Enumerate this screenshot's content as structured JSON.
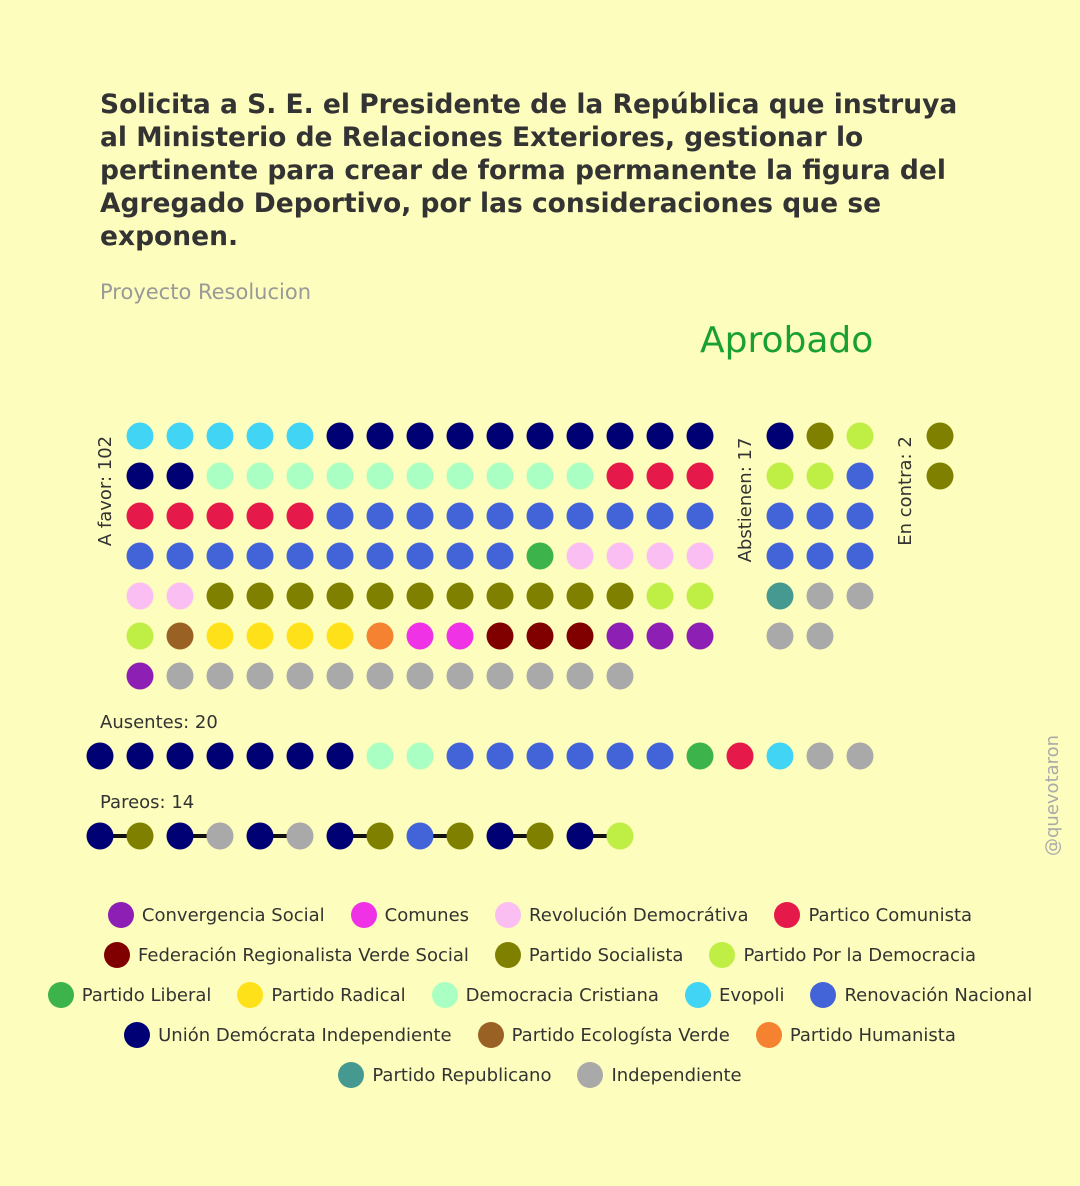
{
  "title": "Solicita a S. E. el Presidente de la República que instruya al Ministerio de Relaciones Exteriores, gestionar lo pertinente para crear de forma permanente la figura del Agregado Deportivo, por las consideraciones que se exponen.",
  "subtitle": "Proyecto Resolucion",
  "result": "Aprobado",
  "watermark": "@quevotaron",
  "parties": [
    {
      "id": "CS",
      "name": "Convergencia Social",
      "color": "#8e1fb5"
    },
    {
      "id": "COM",
      "name": "Comunes",
      "color": "#f032e6"
    },
    {
      "id": "RD",
      "name": "Revolución Democrátiva",
      "color": "#fbbef2"
    },
    {
      "id": "PC",
      "name": "Partico Comunista",
      "color": "#e6194b"
    },
    {
      "id": "FRVS",
      "name": "Federación Regionalista Verde Social",
      "color": "#800000"
    },
    {
      "id": "PS",
      "name": "Partido Socialista",
      "color": "#808000"
    },
    {
      "id": "PPD",
      "name": "Partido Por la Democracia",
      "color": "#bfef45"
    },
    {
      "id": "PL",
      "name": "Partido Liberal",
      "color": "#3cb44b"
    },
    {
      "id": "PR",
      "name": "Partido Radical",
      "color": "#ffe119"
    },
    {
      "id": "DC",
      "name": "Democracia Cristiana",
      "color": "#aaffc3"
    },
    {
      "id": "EVO",
      "name": "Evopoli",
      "color": "#42d4f4"
    },
    {
      "id": "RN",
      "name": "Renovación Nacional",
      "color": "#4363d8"
    },
    {
      "id": "UDI",
      "name": "Unión Demócrata Independiente",
      "color": "#000075"
    },
    {
      "id": "PEV",
      "name": "Partido Ecologísta Verde",
      "color": "#9a6124"
    },
    {
      "id": "PH",
      "name": "Partido Humanista",
      "color": "#f58231"
    },
    {
      "id": "REP",
      "name": "Partido Republicano",
      "color": "#469990"
    },
    {
      "id": "IND",
      "name": "Independiente",
      "color": "#a9a9a9"
    }
  ],
  "legend_rows": [
    [
      "CS",
      "COM",
      "RD",
      "PC"
    ],
    [
      "FRVS",
      "PS",
      "PPD"
    ],
    [
      "PL",
      "PR",
      "DC",
      "EVO",
      "RN"
    ],
    [
      "UDI",
      "PEV",
      "PH"
    ],
    [
      "REP",
      "IND"
    ]
  ],
  "chart_data": {
    "type": "vote-dot-matrix",
    "groups": [
      {
        "key": "favor",
        "label": "A favor: 102",
        "count": 102,
        "votes": [
          "EVO",
          "EVO",
          "EVO",
          "EVO",
          "EVO",
          "UDI",
          "UDI",
          "UDI",
          "UDI",
          "UDI",
          "UDI",
          "UDI",
          "UDI",
          "UDI",
          "UDI",
          "UDI",
          "UDI",
          "DC",
          "DC",
          "DC",
          "DC",
          "DC",
          "DC",
          "DC",
          "DC",
          "DC",
          "DC",
          "PC",
          "PC",
          "PC",
          "PC",
          "PC",
          "PC",
          "PC",
          "PC",
          "RN",
          "RN",
          "RN",
          "RN",
          "RN",
          "RN",
          "RN",
          "RN",
          "RN",
          "RN",
          "RN",
          "RN",
          "RN",
          "RN",
          "RN",
          "RN",
          "RN",
          "RN",
          "RN",
          "RN",
          "PL",
          "RD",
          "RD",
          "RD",
          "RD",
          "RD",
          "RD",
          "PS",
          "PS",
          "PS",
          "PS",
          "PS",
          "PS",
          "PS",
          "PS",
          "PS",
          "PS",
          "PS",
          "PPD",
          "PPD",
          "PPD",
          "PEV",
          "PR",
          "PR",
          "PR",
          "PR",
          "PH",
          "COM",
          "COM",
          "FRVS",
          "FRVS",
          "FRVS",
          "CS",
          "CS",
          "CS",
          "CS",
          "IND",
          "IND",
          "IND",
          "IND",
          "IND",
          "IND",
          "IND",
          "IND",
          "IND",
          "IND",
          "IND",
          "IND"
        ]
      },
      {
        "key": "abstain",
        "label": "Abstienen: 17",
        "count": 17,
        "votes": [
          "UDI",
          "PS",
          "PPD",
          "PPD",
          "PPD",
          "RN",
          "RN",
          "RN",
          "RN",
          "RN",
          "RN",
          "RN",
          "REP",
          "IND",
          "IND",
          "IND",
          "IND"
        ]
      },
      {
        "key": "against",
        "label": "En contra: 2",
        "count": 2,
        "votes": [
          "PS",
          "PS"
        ]
      },
      {
        "key": "absent",
        "label": "Ausentes: 20",
        "count": 20,
        "votes": [
          "UDI",
          "UDI",
          "UDI",
          "UDI",
          "UDI",
          "UDI",
          "UDI",
          "DC",
          "DC",
          "RN",
          "RN",
          "RN",
          "RN",
          "RN",
          "RN",
          "PL",
          "PC",
          "EVO",
          "IND",
          "IND"
        ]
      },
      {
        "key": "pairs",
        "label": "Pareos: 14",
        "count": 14,
        "pairs": [
          [
            "UDI",
            "PS"
          ],
          [
            "UDI",
            "IND"
          ],
          [
            "UDI",
            "IND"
          ],
          [
            "UDI",
            "PS"
          ],
          [
            "RN",
            "PS"
          ],
          [
            "UDI",
            "PS"
          ],
          [
            "UDI",
            "PPD"
          ]
        ]
      }
    ]
  }
}
